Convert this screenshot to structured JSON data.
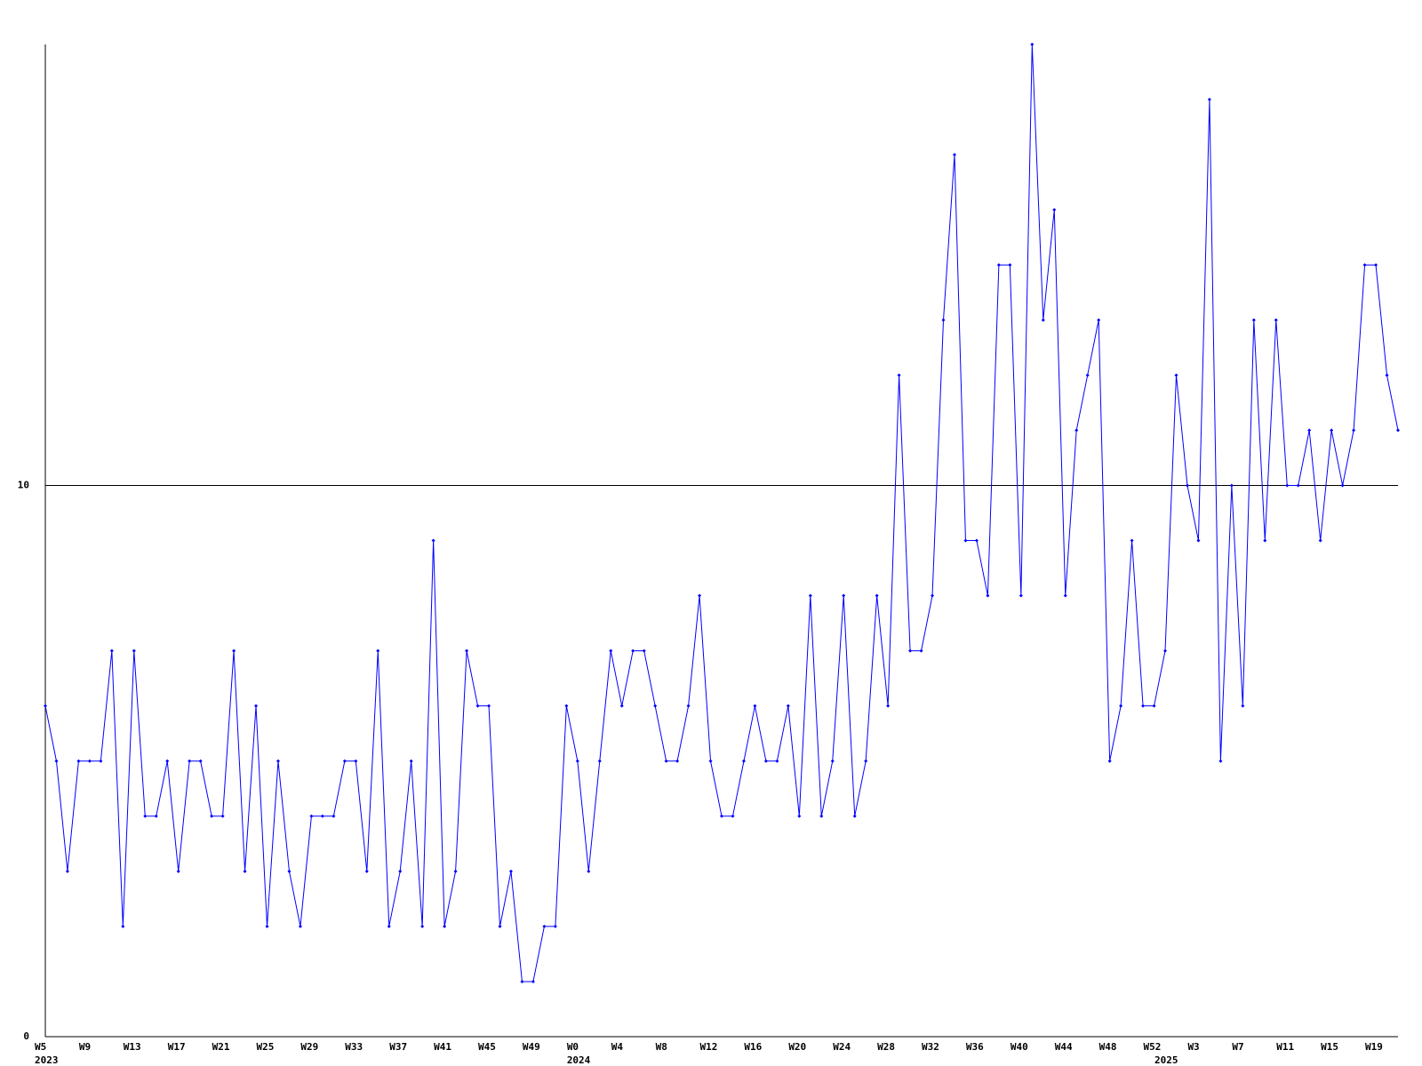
{
  "chart_data": {
    "type": "line",
    "categories": [
      "W5",
      null,
      null,
      null,
      "W9",
      null,
      null,
      null,
      "W13",
      null,
      null,
      null,
      "W17",
      null,
      null,
      null,
      "W21",
      null,
      null,
      null,
      "W25",
      null,
      null,
      null,
      "W29",
      null,
      null,
      null,
      "W33",
      null,
      null,
      null,
      "W37",
      null,
      null,
      null,
      "W41",
      null,
      null,
      null,
      "W45",
      null,
      null,
      null,
      "W49",
      null,
      null,
      null,
      "W0",
      null,
      null,
      null,
      "W4",
      null,
      null,
      null,
      "W8",
      null,
      null,
      null,
      "W12",
      null,
      null,
      null,
      "W16",
      null,
      null,
      null,
      "W20",
      null,
      null,
      null,
      "W24",
      null,
      null,
      null,
      "W28",
      null,
      null,
      null,
      "W32",
      null,
      null,
      null,
      "W36",
      null,
      null,
      null,
      "W40",
      null,
      null,
      null,
      "W44",
      null,
      null,
      null,
      "W48",
      null,
      null,
      null,
      "W52",
      null,
      null,
      null,
      "W3",
      null,
      null,
      null,
      "W7",
      null,
      null,
      null,
      "W11",
      null,
      null,
      null,
      "W15",
      null,
      null,
      null,
      "W19",
      null,
      null
    ],
    "category_groups": [
      {
        "label": "2023",
        "count": 48
      },
      {
        "label": "2024",
        "count": 53
      },
      {
        "label": "2025",
        "count": 22
      }
    ],
    "series": [
      {
        "color": "#0000ff",
        "values": [
          6,
          5,
          3,
          5,
          5,
          5,
          7,
          2,
          7,
          4,
          4,
          5,
          3,
          5,
          5,
          4,
          4,
          7,
          3,
          6,
          2,
          5,
          3,
          2,
          4,
          4,
          4,
          5,
          5,
          3,
          7,
          2,
          3,
          5,
          2,
          9,
          2,
          3,
          7,
          6,
          6,
          2,
          3,
          1,
          1,
          2,
          2,
          6,
          5,
          3,
          5,
          7,
          6,
          7,
          7,
          6,
          5,
          5,
          6,
          8,
          5,
          4,
          4,
          5,
          6,
          5,
          5,
          6,
          4,
          8,
          4,
          5,
          8,
          4,
          5,
          8,
          6,
          12,
          7,
          7,
          8,
          13,
          16,
          9,
          9,
          8,
          14,
          14,
          8,
          18,
          13,
          15,
          8,
          11,
          12,
          13,
          5,
          6,
          9,
          6,
          6,
          7,
          12,
          10,
          9,
          17,
          5,
          10,
          6,
          13,
          9,
          13,
          10,
          10,
          11,
          9,
          11,
          10,
          11,
          14,
          14,
          12,
          11
        ]
      }
    ],
    "ylim": [
      0,
      18
    ],
    "yticks": [
      0,
      10
    ],
    "grid": true
  }
}
